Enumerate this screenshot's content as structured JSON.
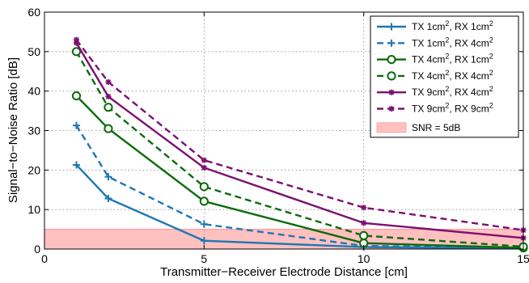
{
  "chart_data": {
    "type": "line",
    "title": "",
    "xlabel": "Transmitter−Receiver Electrode Distance [cm]",
    "ylabel": "Signal−to−Noise Ratio [dB]",
    "xlim": [
      0,
      15
    ],
    "ylim": [
      0,
      60
    ],
    "xticks": [
      0,
      5,
      10,
      15
    ],
    "yticks": [
      0,
      10,
      20,
      30,
      40,
      50,
      60
    ],
    "grid": true,
    "legend_position": "top-right",
    "x": [
      1,
      2,
      5,
      10,
      15
    ],
    "series": [
      {
        "name": "TX 1cm², RX 1cm²",
        "legend_parts": [
          "TX 1cm",
          "2",
          ", RX 1cm",
          "2"
        ],
        "values": [
          21.3,
          12.8,
          2.1,
          0.5,
          0.2
        ],
        "color": "#1f77b4",
        "dash": "solid",
        "marker": "plus"
      },
      {
        "name": "TX 1cm², RX 4cm²",
        "legend_parts": [
          "TX 1cm",
          "2",
          ", RX 4cm",
          "2"
        ],
        "values": [
          31.3,
          18.3,
          6.3,
          0.8,
          0.3
        ],
        "color": "#1f77b4",
        "dash": "dashed",
        "marker": "plus"
      },
      {
        "name": "TX 4cm², RX 1cm²",
        "legend_parts": [
          "TX 4cm",
          "2",
          ", RX 1cm",
          "2"
        ],
        "values": [
          38.8,
          30.5,
          12.1,
          1.5,
          0.3
        ],
        "color": "#0a6b0a",
        "dash": "solid",
        "marker": "circle"
      },
      {
        "name": "TX 4cm², RX 4cm²",
        "legend_parts": [
          "TX 4cm",
          "2",
          ", RX 4cm",
          "2"
        ],
        "values": [
          50.0,
          35.9,
          15.8,
          3.4,
          0.6
        ],
        "color": "#0a6b0a",
        "dash": "dashed",
        "marker": "circle"
      },
      {
        "name": "TX 9cm², RX 4cm²",
        "legend_parts": [
          "TX 9cm",
          "2",
          ", RX 4cm",
          "2"
        ],
        "values": [
          52.2,
          38.6,
          20.6,
          6.6,
          2.8
        ],
        "color": "#7b1072",
        "dash": "solid",
        "marker": "star"
      },
      {
        "name": "TX 9cm², RX 9cm²",
        "legend_parts": [
          "TX 9cm",
          "2",
          ", RX 9cm",
          "2"
        ],
        "values": [
          53.0,
          42.3,
          22.5,
          10.5,
          4.8
        ],
        "color": "#7b1072",
        "dash": "dashed",
        "marker": "star"
      }
    ],
    "threshold": {
      "name": "SNR = 5dB",
      "y": 5,
      "color": "#ffc0c0",
      "edge_color": "#ff9a9a"
    }
  }
}
